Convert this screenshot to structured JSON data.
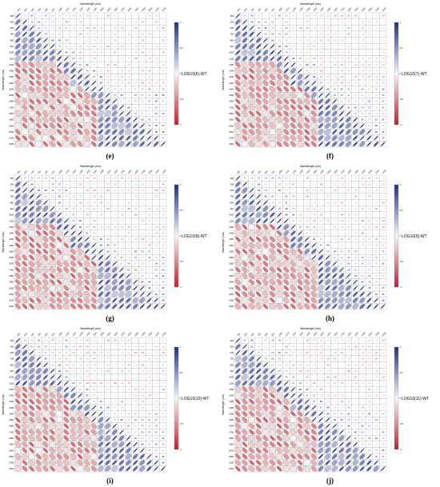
{
  "wavelength_ticks": [
    "460",
    "530",
    "640",
    "760",
    "860",
    "910",
    "1050",
    "1130",
    "1200",
    "1300",
    "1400",
    "1460",
    "1500",
    "1550",
    "1650",
    "1750",
    "1860",
    "1960",
    "2000",
    "2060",
    "2100",
    "2200"
  ],
  "colorbar_ticks": [
    "1",
    "0.5",
    "0",
    "-0.5",
    "-1"
  ],
  "colors": {
    "positive": "#1f2f8f",
    "neutral": "#f6f6f6",
    "negative": "#c21f2a",
    "grid": "#9a9a9a"
  },
  "chart_data": [
    {
      "panel": "(e)",
      "type": "heatmap",
      "title": "Wavelength (nm)",
      "ylabel": "Wavelength (nm)",
      "colorbar_label": "LOG10(6)-WT",
      "n_vars": 22,
      "range": [
        -1,
        1
      ]
    },
    {
      "panel": "(f)",
      "type": "heatmap",
      "title": "Wavelength (nm)",
      "ylabel": "Wavelength (nm)",
      "colorbar_label": "LOG10(7)-WT",
      "n_vars": 22,
      "range": [
        -1,
        1
      ]
    },
    {
      "panel": "(g)",
      "type": "heatmap",
      "title": "Wavelength (nm)",
      "ylabel": "Wavelength (nm)",
      "colorbar_label": "LOG10(8)-WT",
      "n_vars": 22,
      "range": [
        -1,
        1
      ]
    },
    {
      "panel": "(h)",
      "type": "heatmap",
      "title": "Wavelength (nm)",
      "ylabel": "Wavelength (nm)",
      "colorbar_label": "LOG10(9)-WT",
      "n_vars": 22,
      "range": [
        -1,
        1
      ]
    },
    {
      "panel": "(i)",
      "type": "heatmap",
      "title": "Wavelength (nm)",
      "ylabel": "Wavelength (nm)",
      "colorbar_label": "LOG10(10)-WT",
      "n_vars": 22,
      "range": [
        -1,
        1
      ]
    },
    {
      "panel": "(j)",
      "type": "heatmap",
      "title": "Wavelength (nm)",
      "ylabel": "Wavelength (nm)",
      "colorbar_label": "LOG10(11)-WT",
      "n_vars": 22,
      "range": [
        -1,
        1
      ]
    }
  ]
}
